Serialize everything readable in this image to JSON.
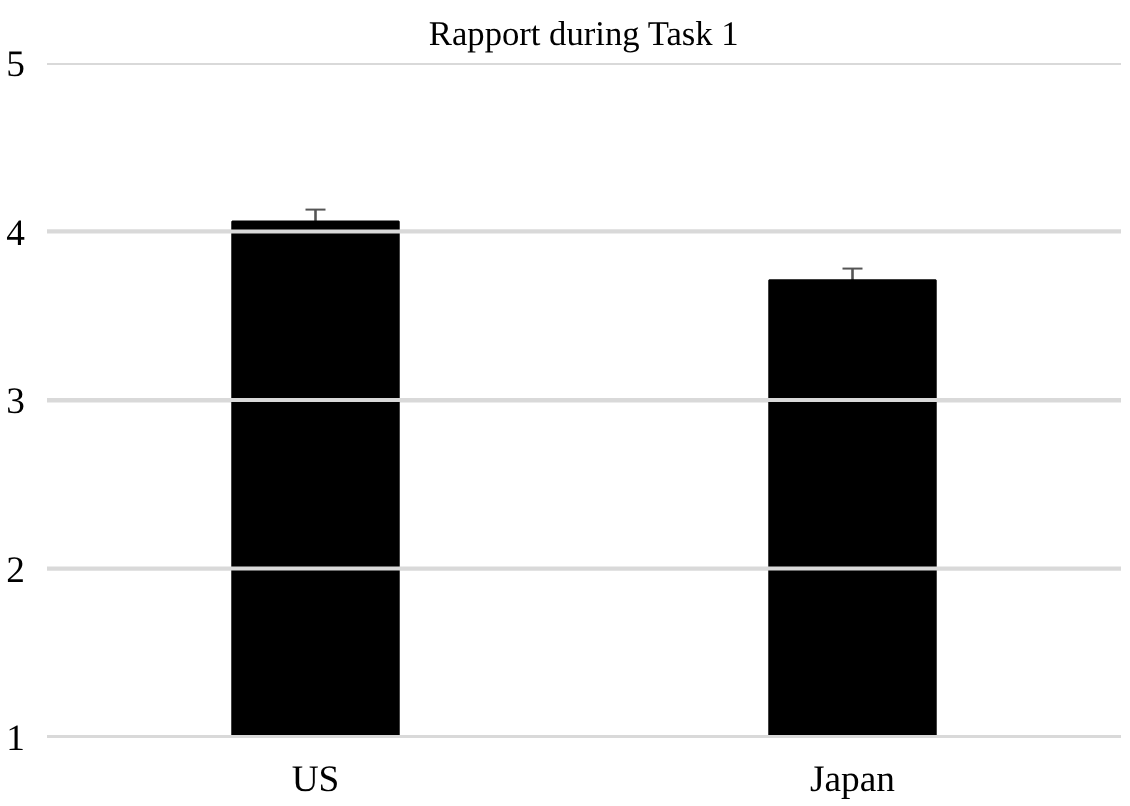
{
  "chart_data": {
    "type": "bar",
    "title": "Rapport during Task 1",
    "categories": [
      "US",
      "Japan"
    ],
    "values": [
      4.06,
      3.71
    ],
    "errors": [
      0.07,
      0.07
    ],
    "color": "#000000",
    "ylim": [
      1,
      5
    ],
    "yticks": [
      1,
      2,
      3,
      4,
      5
    ],
    "grid": "y"
  }
}
